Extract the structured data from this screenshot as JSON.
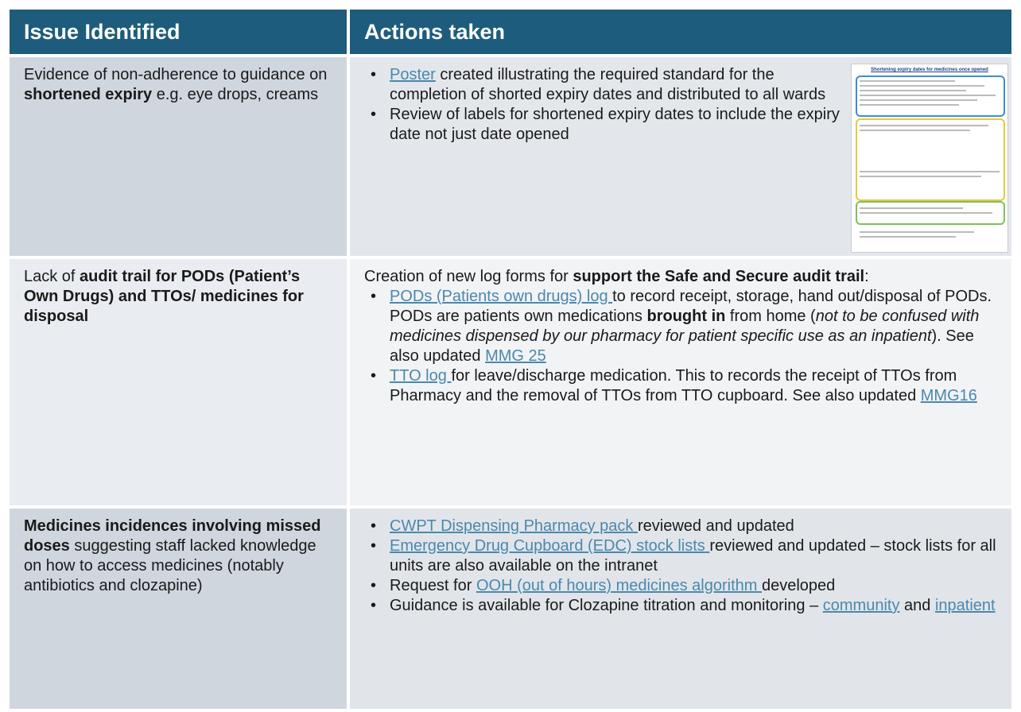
{
  "table": {
    "header": [
      "Issue Identified",
      "Actions taken"
    ],
    "rows": [
      {
        "issue": [
          "Evidence of non-adherence to guidance on ",
          {
            "text": "shortened expiry",
            "bold": true
          },
          " e.g. eye drops, creams"
        ],
        "bullets": [
          [
            {
              "text": "Poster",
              "link": true
            },
            " created illustrating the required standard for the completion of shorted expiry dates and distributed to all wards"
          ],
          [
            "Review of labels for shortened expiry dates to include the expiry date not just date opened"
          ]
        ],
        "poster": {
          "title": "Shortening expiry dates for medicines once opened"
        }
      },
      {
        "issue": [
          "Lack of ",
          {
            "text": "audit trail for PODs (Patient’s Own Drugs) and TTOs/ medicines for disposal",
            "bold": true
          }
        ],
        "intro": [
          "Creation of  new log forms for ",
          {
            "text": "support the Safe and Secure audit trail",
            "bold": true
          },
          ":"
        ],
        "bullets": [
          [
            {
              "text": "PODs (Patients own drugs) log ",
              "link": true
            },
            "to record receipt, storage, hand out/disposal of PODs. PODs are patients own medications ",
            {
              "text": "brought in",
              "bold": true
            },
            " from home (",
            {
              "text": "not to be confused with medicines dispensed by our pharmacy for patient specific use as an inpatient",
              "italic": true
            },
            "). See also updated ",
            {
              "text": "MMG 25",
              "link": true
            }
          ],
          [
            {
              "text": "TTO log ",
              "link": true
            },
            "for leave/discharge medication. This to records the receipt of TTOs from Pharmacy and the removal of TTOs from TTO cupboard. See also updated ",
            {
              "text": "MMG16",
              "link": true
            }
          ]
        ]
      },
      {
        "issue": [
          {
            "text": "Medicines incidences involving missed doses",
            "bold": true
          },
          " suggesting staff lacked knowledge on how to access medicines (notably antibiotics and clozapine)"
        ],
        "bullets": [
          [
            {
              "text": "CWPT Dispensing Pharmacy pack ",
              "link": true
            },
            "reviewed and updated"
          ],
          [
            {
              "text": "Emergency Drug Cupboard (EDC) stock lists ",
              "link": true
            },
            "reviewed and updated – stock lists for all units are also available on the intranet"
          ],
          [
            "Request for ",
            {
              "text": "OOH (out of hours) medicines algorithm ",
              "link": true
            },
            "developed"
          ],
          [
            "Guidance is available for Clozapine titration and monitoring – ",
            {
              "text": "community",
              "link": true
            },
            " and ",
            {
              "text": "inpatient",
              "link": true
            }
          ]
        ]
      }
    ]
  }
}
